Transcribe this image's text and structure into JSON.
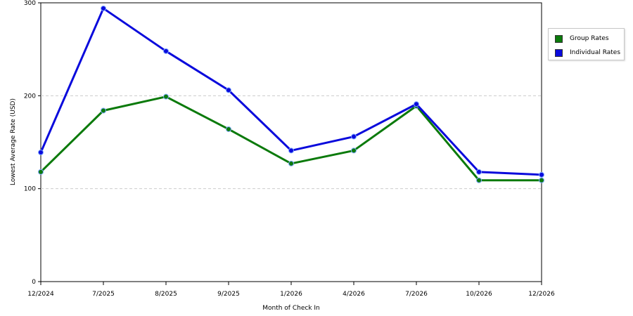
{
  "colors": {
    "group": "#0b7a0b",
    "individual": "#0a0adc",
    "grid": "#cccccc",
    "axis": "#000000"
  },
  "chart_data": {
    "type": "line",
    "title": "",
    "xlabel": "Month of Check In",
    "ylabel": "Lowest Average Rate (USD)",
    "ylim": [
      0,
      300
    ],
    "yticks": [
      0,
      100,
      200,
      300
    ],
    "grid": true,
    "legend_position": "top-right",
    "categories": [
      "12/2024",
      "7/2025",
      "8/2025",
      "9/2025",
      "1/2026",
      "4/2026",
      "7/2026",
      "10/2026",
      "12/2026"
    ],
    "series": [
      {
        "name": "Group Rates",
        "color": "#0b7a0b",
        "values": [
          118,
          184,
          199,
          164,
          127,
          141,
          189,
          109,
          109
        ]
      },
      {
        "name": "Individual Rates",
        "color": "#0a0adc",
        "values": [
          139,
          294,
          248,
          206,
          141,
          156,
          191,
          118,
          115
        ]
      }
    ]
  }
}
